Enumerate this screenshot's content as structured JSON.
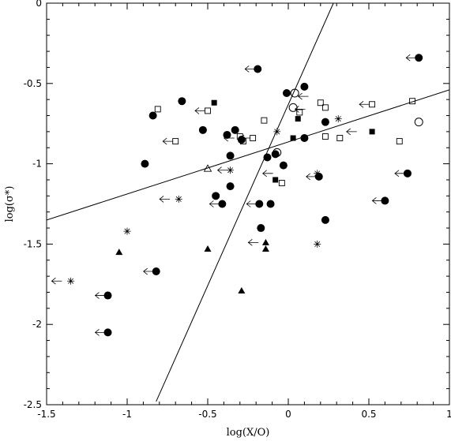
{
  "chart_data": {
    "type": "scatter",
    "xlabel": "log(X/O)",
    "ylabel": "log(σ*)",
    "xlim": [
      -1.5,
      1.0
    ],
    "ylim": [
      -2.5,
      0.0
    ],
    "xticks": [
      {
        "value": -1.5,
        "label": "-1.5"
      },
      {
        "value": -1.0,
        "label": "-1"
      },
      {
        "value": -0.5,
        "label": "-0.5"
      },
      {
        "value": 0.0,
        "label": "0"
      },
      {
        "value": 0.5,
        "label": "0.5"
      },
      {
        "value": 1.0,
        "label": "1"
      }
    ],
    "yticks": [
      {
        "value": 0.0,
        "label": "0"
      },
      {
        "value": -0.5,
        "label": "-0.5"
      },
      {
        "value": -1.0,
        "label": "-1"
      },
      {
        "value": -1.5,
        "label": "-1.5"
      },
      {
        "value": -2.0,
        "label": "-2"
      },
      {
        "value": -2.5,
        "label": "-2.5"
      }
    ],
    "grid": false,
    "lines": [
      {
        "points": [
          [
            -1.5,
            -1.35
          ],
          [
            1.0,
            -0.54
          ]
        ]
      },
      {
        "points": [
          [
            -0.82,
            -2.48
          ],
          [
            0.28,
            0.0
          ]
        ]
      }
    ],
    "series": [
      {
        "marker": "filled-circle",
        "points": [
          [
            0.81,
            -0.34
          ],
          [
            0.1,
            -0.52
          ],
          [
            -0.01,
            -0.56
          ],
          [
            -0.19,
            -0.41
          ],
          [
            -0.66,
            -0.61
          ],
          [
            -0.84,
            -0.7
          ],
          [
            -0.53,
            -0.79
          ],
          [
            -0.33,
            -0.79
          ],
          [
            -0.38,
            -0.82
          ],
          [
            -0.36,
            -0.95
          ],
          [
            -0.29,
            -0.85
          ],
          [
            -0.89,
            -1.0
          ],
          [
            -0.13,
            -0.96
          ],
          [
            -0.08,
            -0.94
          ],
          [
            -0.03,
            -1.01
          ],
          [
            0.1,
            -0.84
          ],
          [
            0.23,
            -0.74
          ],
          [
            0.19,
            -1.08
          ],
          [
            0.74,
            -1.06
          ],
          [
            -0.36,
            -1.14
          ],
          [
            -0.45,
            -1.2
          ],
          [
            -0.41,
            -1.25
          ],
          [
            -0.18,
            -1.25
          ],
          [
            -0.11,
            -1.25
          ],
          [
            -0.17,
            -1.4
          ],
          [
            0.23,
            -1.35
          ],
          [
            0.6,
            -1.23
          ],
          [
            -0.82,
            -1.67
          ],
          [
            -1.12,
            -1.82
          ],
          [
            -1.12,
            -2.05
          ]
        ]
      },
      {
        "marker": "arrow-left",
        "points": [
          [
            0.81,
            -0.34
          ],
          [
            -0.19,
            -0.41
          ],
          [
            -0.5,
            -0.67
          ],
          [
            -0.7,
            -0.86
          ],
          [
            -0.32,
            -0.84
          ],
          [
            -0.22,
            -0.84
          ],
          [
            -0.08,
            -1.06
          ],
          [
            0.19,
            -1.08
          ],
          [
            0.74,
            -1.06
          ],
          [
            -0.41,
            -1.25
          ],
          [
            -0.18,
            -1.25
          ],
          [
            0.6,
            -1.23
          ],
          [
            -0.82,
            -1.67
          ],
          [
            -1.12,
            -1.82
          ],
          [
            -1.12,
            -2.05
          ],
          [
            0.14,
            -0.58
          ],
          [
            0.52,
            -0.63
          ],
          [
            -0.72,
            -1.22
          ],
          [
            -0.36,
            -1.04
          ],
          [
            -0.17,
            -1.49
          ],
          [
            -1.39,
            -1.73
          ],
          [
            0.12,
            -0.66
          ],
          [
            0.44,
            -0.8
          ]
        ]
      },
      {
        "marker": "open-square",
        "points": [
          [
            -0.81,
            -0.66
          ],
          [
            -0.5,
            -0.67
          ],
          [
            -0.7,
            -0.86
          ],
          [
            -0.15,
            -0.73
          ],
          [
            0.2,
            -0.62
          ],
          [
            0.23,
            -0.65
          ],
          [
            0.52,
            -0.63
          ],
          [
            0.77,
            -0.61
          ],
          [
            0.07,
            -0.68
          ],
          [
            -0.3,
            -0.83
          ],
          [
            -0.28,
            -0.86
          ],
          [
            -0.22,
            -0.84
          ],
          [
            0.23,
            -0.83
          ],
          [
            0.32,
            -0.84
          ],
          [
            0.69,
            -0.86
          ],
          [
            -0.04,
            -1.12
          ]
        ]
      },
      {
        "marker": "filled-square",
        "points": [
          [
            -0.46,
            -0.62
          ],
          [
            0.06,
            -0.72
          ],
          [
            0.03,
            -0.84
          ],
          [
            0.52,
            -0.8
          ],
          [
            -0.08,
            -1.1
          ]
        ]
      },
      {
        "marker": "open-circle",
        "points": [
          [
            0.04,
            -0.56
          ],
          [
            0.81,
            -0.74
          ],
          [
            -0.07,
            -0.93
          ],
          [
            0.03,
            -0.65
          ]
        ]
      },
      {
        "marker": "filled-triangle",
        "points": [
          [
            -1.05,
            -1.55
          ],
          [
            -0.5,
            -1.53
          ],
          [
            -0.29,
            -1.79
          ],
          [
            -0.14,
            -1.49
          ],
          [
            -0.14,
            -1.53
          ]
        ]
      },
      {
        "marker": "open-triangle",
        "points": [
          [
            -0.5,
            -1.03
          ]
        ]
      },
      {
        "marker": "asterisk",
        "points": [
          [
            0.31,
            -0.72
          ],
          [
            -0.36,
            -1.04
          ],
          [
            0.18,
            -1.06
          ],
          [
            0.18,
            -1.5
          ],
          [
            -1.35,
            -1.73
          ],
          [
            -1.0,
            -1.42
          ],
          [
            -0.68,
            -1.22
          ],
          [
            -0.07,
            -0.8
          ]
        ]
      }
    ]
  }
}
